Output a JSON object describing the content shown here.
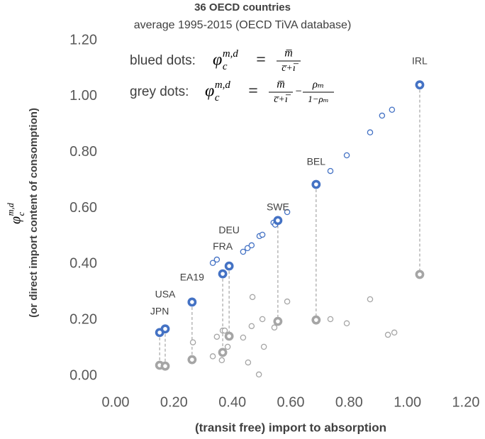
{
  "chart_data": {
    "type": "scatter",
    "title": "36 OECD countries",
    "subtitle": "average 1995-2015 (OECD TiVA database)",
    "x_label": "(transit free) import to absorption",
    "y_label": {
      "symbol": "φ",
      "sub": "c",
      "sup": "m,d",
      "text": "(or direct import content of consomption)"
    },
    "legend_formulas": [
      {
        "label": "blued dots:",
        "symbol": "φ",
        "sub": "c",
        "sup": "m,d",
        "eq": "=",
        "terms": [
          {
            "num": "m̅",
            "den": "c̅+ı̅"
          }
        ]
      },
      {
        "label": "grey dots:",
        "symbol": "φ",
        "sub": "c",
        "sup": "m,d",
        "eq": "=",
        "terms": [
          {
            "num": "m̅",
            "den": "c̅+ı̅"
          },
          {
            "op": "−"
          },
          {
            "num": "ρₘ",
            "den": "1−ρₘ"
          }
        ]
      }
    ],
    "xlim": [
      0,
      1.2
    ],
    "ylim": [
      0,
      1.2
    ],
    "xticks": [
      {
        "value": 0,
        "label": "0.00"
      },
      {
        "value": 0.2,
        "label": "0.20"
      },
      {
        "value": 0.4,
        "label": "0.40"
      },
      {
        "value": 0.6,
        "label": "0.60"
      },
      {
        "value": 0.8,
        "label": "0.80"
      },
      {
        "value": 1.0,
        "label": "1.00"
      },
      {
        "value": 1.2,
        "label": "1.20"
      }
    ],
    "yticks": [
      {
        "value": 0,
        "label": "0.00"
      },
      {
        "value": 0.2,
        "label": "0.20"
      },
      {
        "value": 0.4,
        "label": "0.40"
      },
      {
        "value": 0.6,
        "label": "0.60"
      },
      {
        "value": 0.8,
        "label": "0.80"
      },
      {
        "value": 1.0,
        "label": "1.00"
      },
      {
        "value": 1.2,
        "label": "1.20"
      }
    ],
    "grid": false,
    "series": [
      {
        "color": "#4472c4",
        "highlight": false,
        "x": [
          0.333,
          0.347,
          0.437,
          0.452,
          0.466,
          0.493,
          0.503,
          0.541,
          0.547,
          0.588,
          0.736,
          0.792,
          0.872,
          0.913,
          0.947
        ],
        "values": [
          0.404,
          0.416,
          0.444,
          0.457,
          0.467,
          0.5,
          0.505,
          0.548,
          0.541,
          0.586,
          0.733,
          0.789,
          0.871,
          0.931,
          0.952
        ]
      },
      {
        "color": "#4472c4",
        "highlight": true,
        "labels": [
          "JPN",
          "USA",
          "EA19",
          "FRA",
          "DEU",
          "SWE",
          "BEL",
          "IRL"
        ],
        "x": [
          0.151,
          0.17,
          0.262,
          0.367,
          0.389,
          0.556,
          0.687,
          1.042
        ],
        "values": [
          0.155,
          0.168,
          0.264,
          0.365,
          0.393,
          0.556,
          0.685,
          1.041
        ]
      },
      {
        "color": "#a5a5a5",
        "highlight": false,
        "x": [
          0.265,
          0.333,
          0.347,
          0.364,
          0.367,
          0.374,
          0.384,
          0.437,
          0.454,
          0.466,
          0.469,
          0.491,
          0.503,
          0.508,
          0.544,
          0.588,
          0.736,
          0.792,
          0.872,
          0.933,
          0.955
        ],
        "values": [
          0.12,
          0.07,
          0.14,
          0.056,
          0.162,
          0.162,
          0.104,
          0.137,
          0.048,
          0.178,
          0.282,
          0.005,
          0.203,
          0.104,
          0.173,
          0.266,
          0.203,
          0.188,
          0.274,
          0.147,
          0.155
        ]
      },
      {
        "color": "#a5a5a5",
        "highlight": true,
        "x": [
          0.151,
          0.17,
          0.262,
          0.367,
          0.389,
          0.556,
          0.687,
          1.042
        ],
        "values": [
          0.038,
          0.035,
          0.058,
          0.084,
          0.142,
          0.195,
          0.2,
          0.363
        ]
      }
    ]
  }
}
